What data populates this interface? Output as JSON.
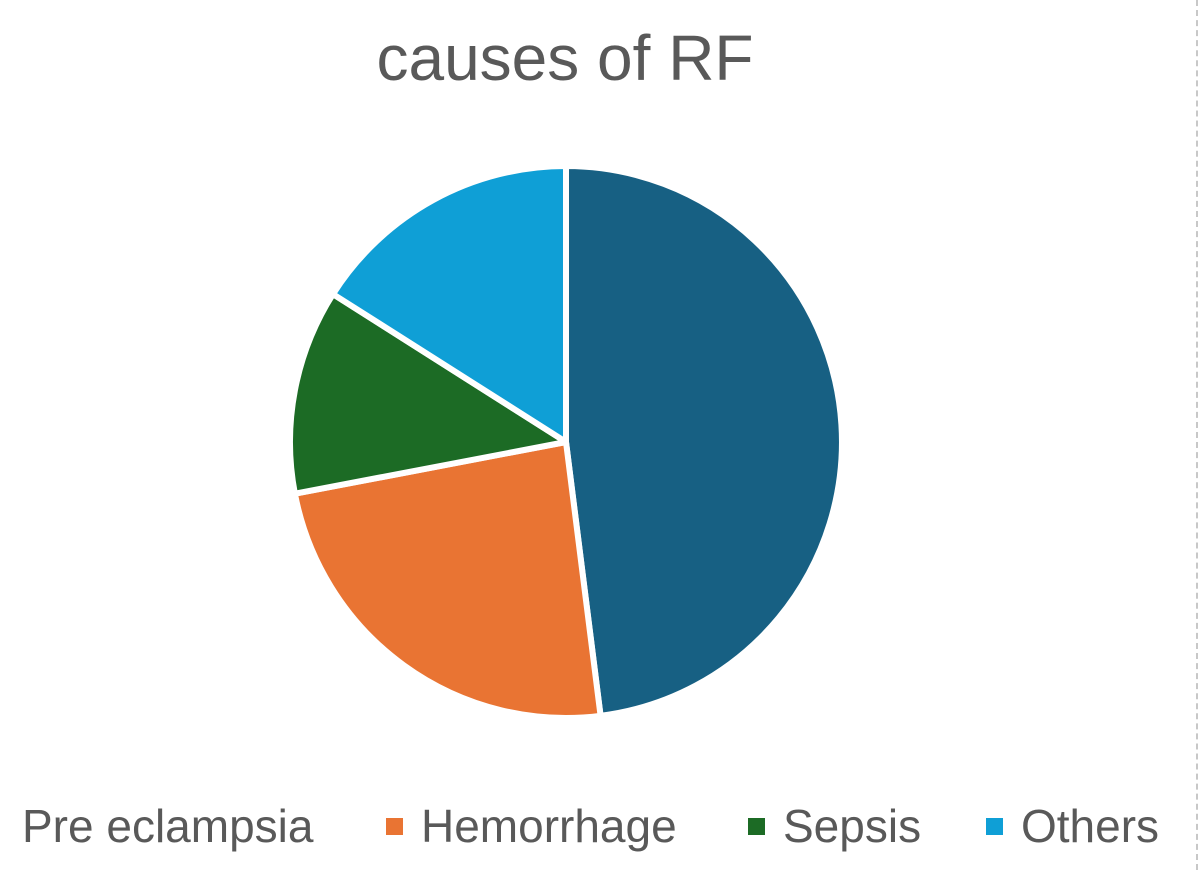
{
  "chart_data": {
    "type": "pie",
    "title": "causes of RF",
    "categories": [
      "Pre eclampsia",
      "Hemorrhage",
      "Sepsis",
      "Others"
    ],
    "values": [
      48,
      24,
      12,
      16
    ],
    "colors": [
      "#176083",
      "#E97433",
      "#1C6B25",
      "#0F9FD6"
    ],
    "legend_position": "bottom",
    "start_angle_deg": 0,
    "direction": "clockwise"
  }
}
